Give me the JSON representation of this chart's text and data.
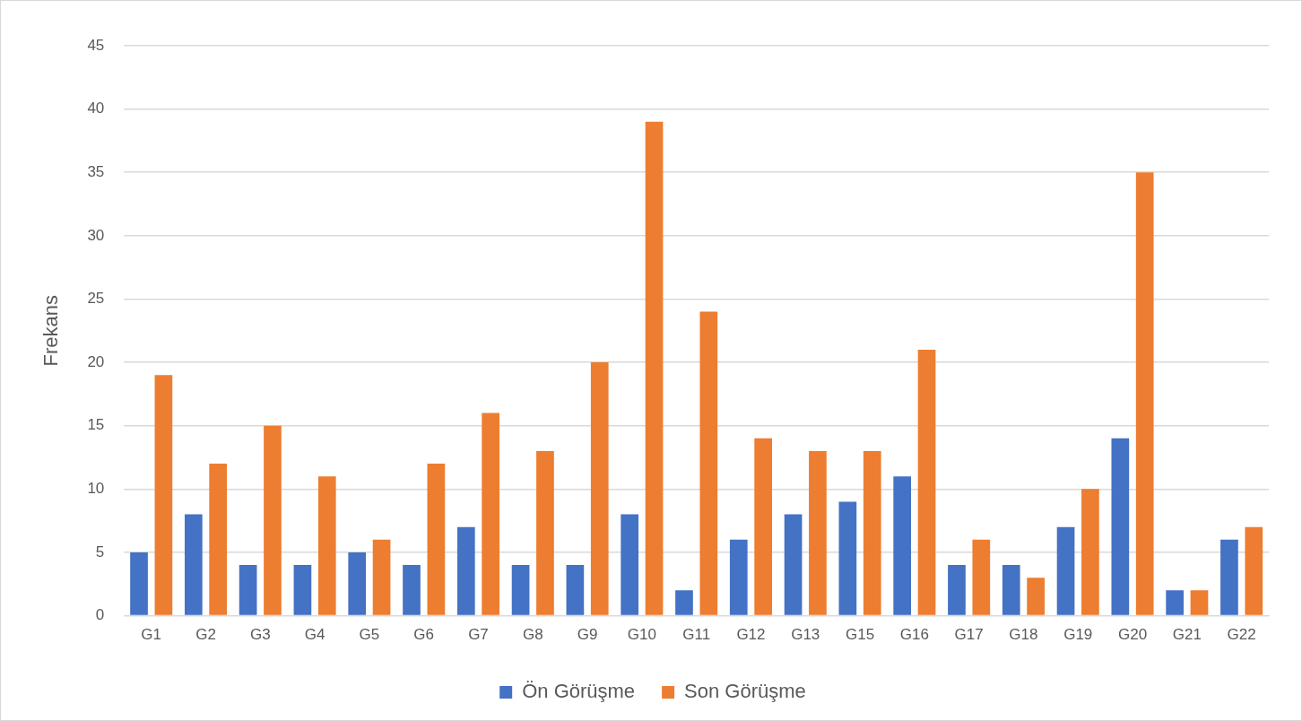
{
  "chart_data": {
    "type": "bar",
    "ylabel": "Frekans",
    "categories": [
      "G1",
      "G2",
      "G3",
      "G4",
      "G5",
      "G6",
      "G7",
      "G8",
      "G9",
      "G10",
      "G11",
      "G12",
      "G13",
      "G15",
      "G16",
      "G17",
      "G18",
      "G19",
      "G20",
      "G21",
      "G22"
    ],
    "series": [
      {
        "name": "Ön Görüşme",
        "color": "#4472c4",
        "values": [
          5,
          8,
          4,
          4,
          5,
          4,
          7,
          4,
          4,
          8,
          2,
          6,
          8,
          9,
          11,
          4,
          4,
          7,
          14,
          2,
          6
        ]
      },
      {
        "name": "Son Görüşme",
        "color": "#ed7d31",
        "values": [
          19,
          12,
          15,
          11,
          6,
          12,
          16,
          13,
          20,
          39,
          24,
          14,
          13,
          13,
          21,
          6,
          3,
          10,
          35,
          2,
          7
        ]
      }
    ],
    "ylim": [
      0,
      45
    ],
    "yticks": [
      0,
      5,
      10,
      15,
      20,
      25,
      30,
      35,
      40,
      45
    ],
    "grid": "y",
    "legend": "bottom"
  }
}
